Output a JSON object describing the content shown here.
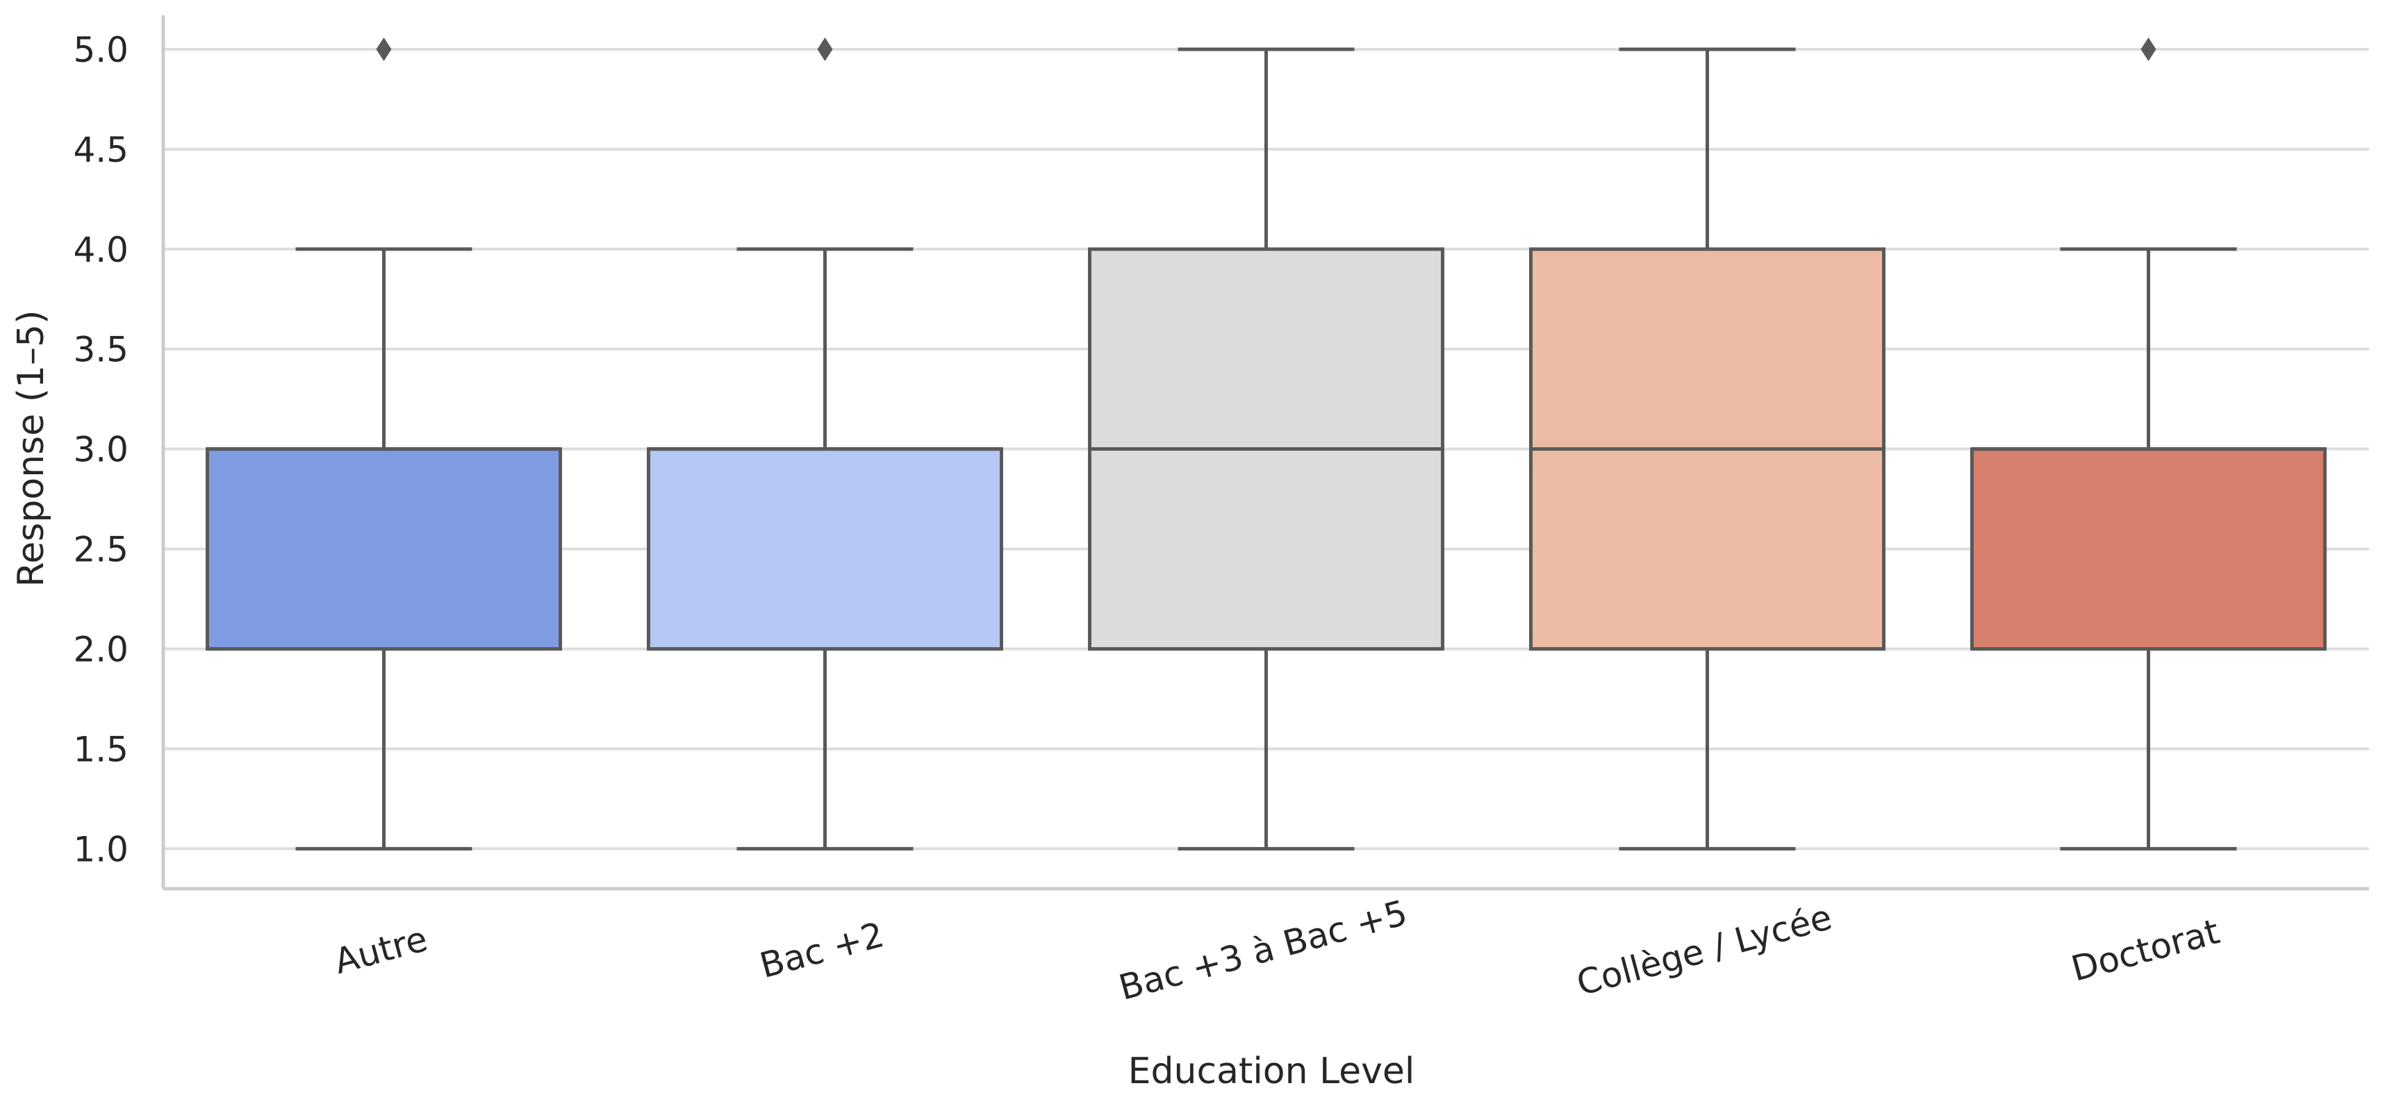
{
  "chart_data": {
    "type": "box",
    "title": "",
    "xlabel": "Education Level",
    "ylabel": "Response (1–5)",
    "ylim": [
      0.8,
      5.17
    ],
    "yticks": [
      "1.0",
      "1.5",
      "2.0",
      "2.5",
      "3.0",
      "3.5",
      "4.0",
      "4.5",
      "5.0"
    ],
    "grid": "horizontal",
    "categories": [
      "Autre",
      "Bac +2",
      "Bac +3 à Bac +5",
      "Collège / Lycée",
      "Doctorat"
    ],
    "boxes": [
      {
        "category": "Autre",
        "whisker_low": 1.0,
        "q1": 2.0,
        "median": 3.0,
        "q3": 3.0,
        "whisker_high": 4.0,
        "outliers": [
          5.0
        ],
        "color": "#7f9ce3"
      },
      {
        "category": "Bac +2",
        "whisker_low": 1.0,
        "q1": 2.0,
        "median": 3.0,
        "q3": 3.0,
        "whisker_high": 4.0,
        "outliers": [
          5.0
        ],
        "color": "#b5c8f3"
      },
      {
        "category": "Bac +3 à Bac +5",
        "whisker_low": 1.0,
        "q1": 2.0,
        "median": 3.0,
        "q3": 4.0,
        "whisker_high": 5.0,
        "outliers": [],
        "color": "#dcdcdc"
      },
      {
        "category": "Collège / Lycée",
        "whisker_low": 1.0,
        "q1": 2.0,
        "median": 3.0,
        "q3": 4.0,
        "whisker_high": 5.0,
        "outliers": [],
        "color": "#ebbba3"
      },
      {
        "category": "Doctorat",
        "whisker_low": 1.0,
        "q1": 2.0,
        "median": 3.0,
        "q3": 3.0,
        "whisker_high": 4.0,
        "outliers": [
          5.0
        ],
        "color": "#d67f6c"
      }
    ],
    "colors": {
      "line": "#595959",
      "grid": "#dddddd",
      "spine": "#cccccc",
      "text": "#262626"
    }
  }
}
